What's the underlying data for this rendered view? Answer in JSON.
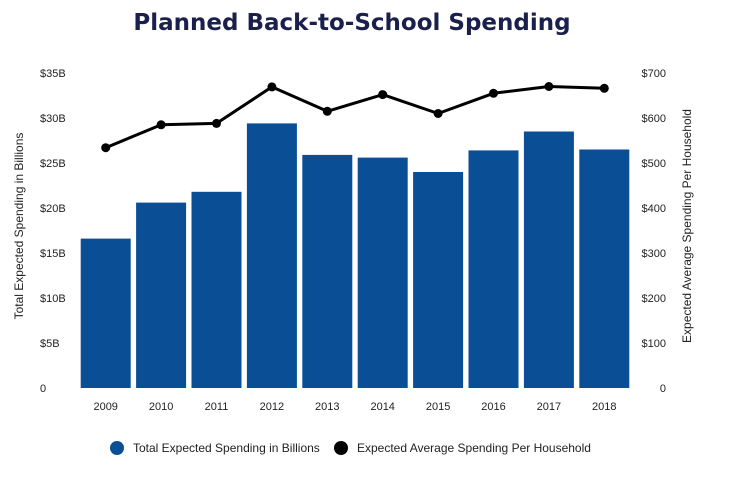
{
  "chart_data": {
    "type": "bar",
    "title": "Planned Back-to-School Spending",
    "categories": [
      "2009",
      "2010",
      "2011",
      "2012",
      "2013",
      "2014",
      "2015",
      "2016",
      "2017",
      "2018"
    ],
    "series": [
      {
        "name": "Total Expected Spending in Billions",
        "type": "bar",
        "axis": "left",
        "values": [
          16.6,
          20.6,
          21.8,
          29.4,
          25.9,
          25.6,
          24.0,
          26.4,
          28.5,
          26.5
        ]
      },
      {
        "name": "Expected Average Spending Per Household",
        "type": "line",
        "axis": "right",
        "values": [
          534,
          585,
          588,
          669,
          615,
          652,
          610,
          655,
          670,
          666
        ]
      }
    ],
    "y_left": {
      "label": "Total Expected Spending in Billions",
      "min": 0,
      "max": 35,
      "ticks": [
        0,
        5,
        10,
        15,
        20,
        25,
        30,
        35
      ],
      "tick_labels": [
        "0",
        "$5B",
        "$10B",
        "$15B",
        "$20B",
        "$25B",
        "$30B",
        "$35B"
      ]
    },
    "y_right": {
      "label": "Expected Average Spending Per Household",
      "min": 0,
      "max": 700,
      "ticks": [
        0,
        100,
        200,
        300,
        400,
        500,
        600,
        700
      ],
      "tick_labels": [
        "0",
        "$100",
        "$200",
        "$300",
        "$400",
        "$500",
        "$600",
        "$700"
      ]
    },
    "grid": false,
    "legend_position": "bottom",
    "colors": {
      "bar": "#0a4e96",
      "line": "#000000",
      "title": "#1b1f4b"
    }
  }
}
